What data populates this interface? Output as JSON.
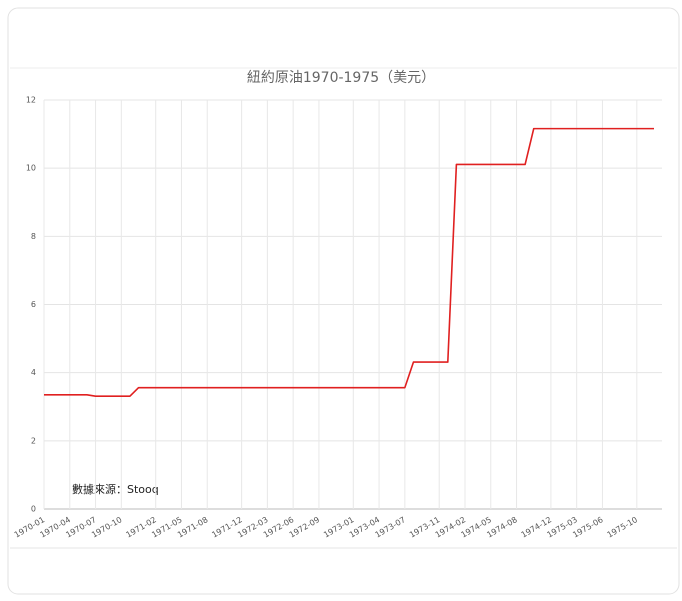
{
  "chart_data": {
    "type": "line",
    "title": "紐約原油1970-1975（美元）",
    "annotation": "數據來源：Stooq",
    "categories": [
      "1970-01",
      null,
      null,
      "1970-04",
      null,
      null,
      "1970-07",
      null,
      null,
      "1970-10",
      null,
      null,
      null,
      "1971-02",
      null,
      null,
      "1971-05",
      null,
      null,
      "1971-08",
      null,
      null,
      null,
      "1971-12",
      null,
      null,
      "1972-03",
      null,
      null,
      "1972-06",
      null,
      null,
      "1972-09",
      null,
      null,
      null,
      "1973-01",
      null,
      null,
      "1973-04",
      null,
      null,
      "1973-07",
      null,
      null,
      null,
      "1973-11",
      null,
      null,
      "1974-02",
      null,
      null,
      "1974-05",
      null,
      null,
      "1974-08",
      null,
      null,
      null,
      "1974-12",
      null,
      null,
      "1975-03",
      null,
      null,
      "1975-06",
      null,
      null,
      null,
      "1975-10",
      null,
      null
    ],
    "series": [
      {
        "name": "紐約原油",
        "color": "#e02020",
        "values": [
          3.35,
          3.35,
          3.35,
          3.35,
          3.35,
          3.35,
          3.31,
          3.31,
          3.31,
          3.31,
          3.31,
          3.56,
          3.56,
          3.56,
          3.56,
          3.56,
          3.56,
          3.56,
          3.56,
          3.56,
          3.56,
          3.56,
          3.56,
          3.56,
          3.56,
          3.56,
          3.56,
          3.56,
          3.56,
          3.56,
          3.56,
          3.56,
          3.56,
          3.56,
          3.56,
          3.56,
          3.56,
          3.56,
          3.56,
          3.56,
          3.56,
          3.56,
          3.56,
          4.31,
          4.31,
          4.31,
          4.31,
          4.31,
          10.11,
          10.11,
          10.11,
          10.11,
          10.11,
          10.11,
          10.11,
          10.11,
          10.11,
          11.16,
          11.16,
          11.16,
          11.16,
          11.16,
          11.16,
          11.16,
          11.16,
          11.16,
          11.16,
          11.16,
          11.16,
          11.16,
          11.16,
          11.16
        ]
      }
    ],
    "ylim": [
      0,
      12
    ],
    "yticks": [
      0,
      2,
      4,
      6,
      8,
      10,
      12
    ],
    "grid": true
  }
}
